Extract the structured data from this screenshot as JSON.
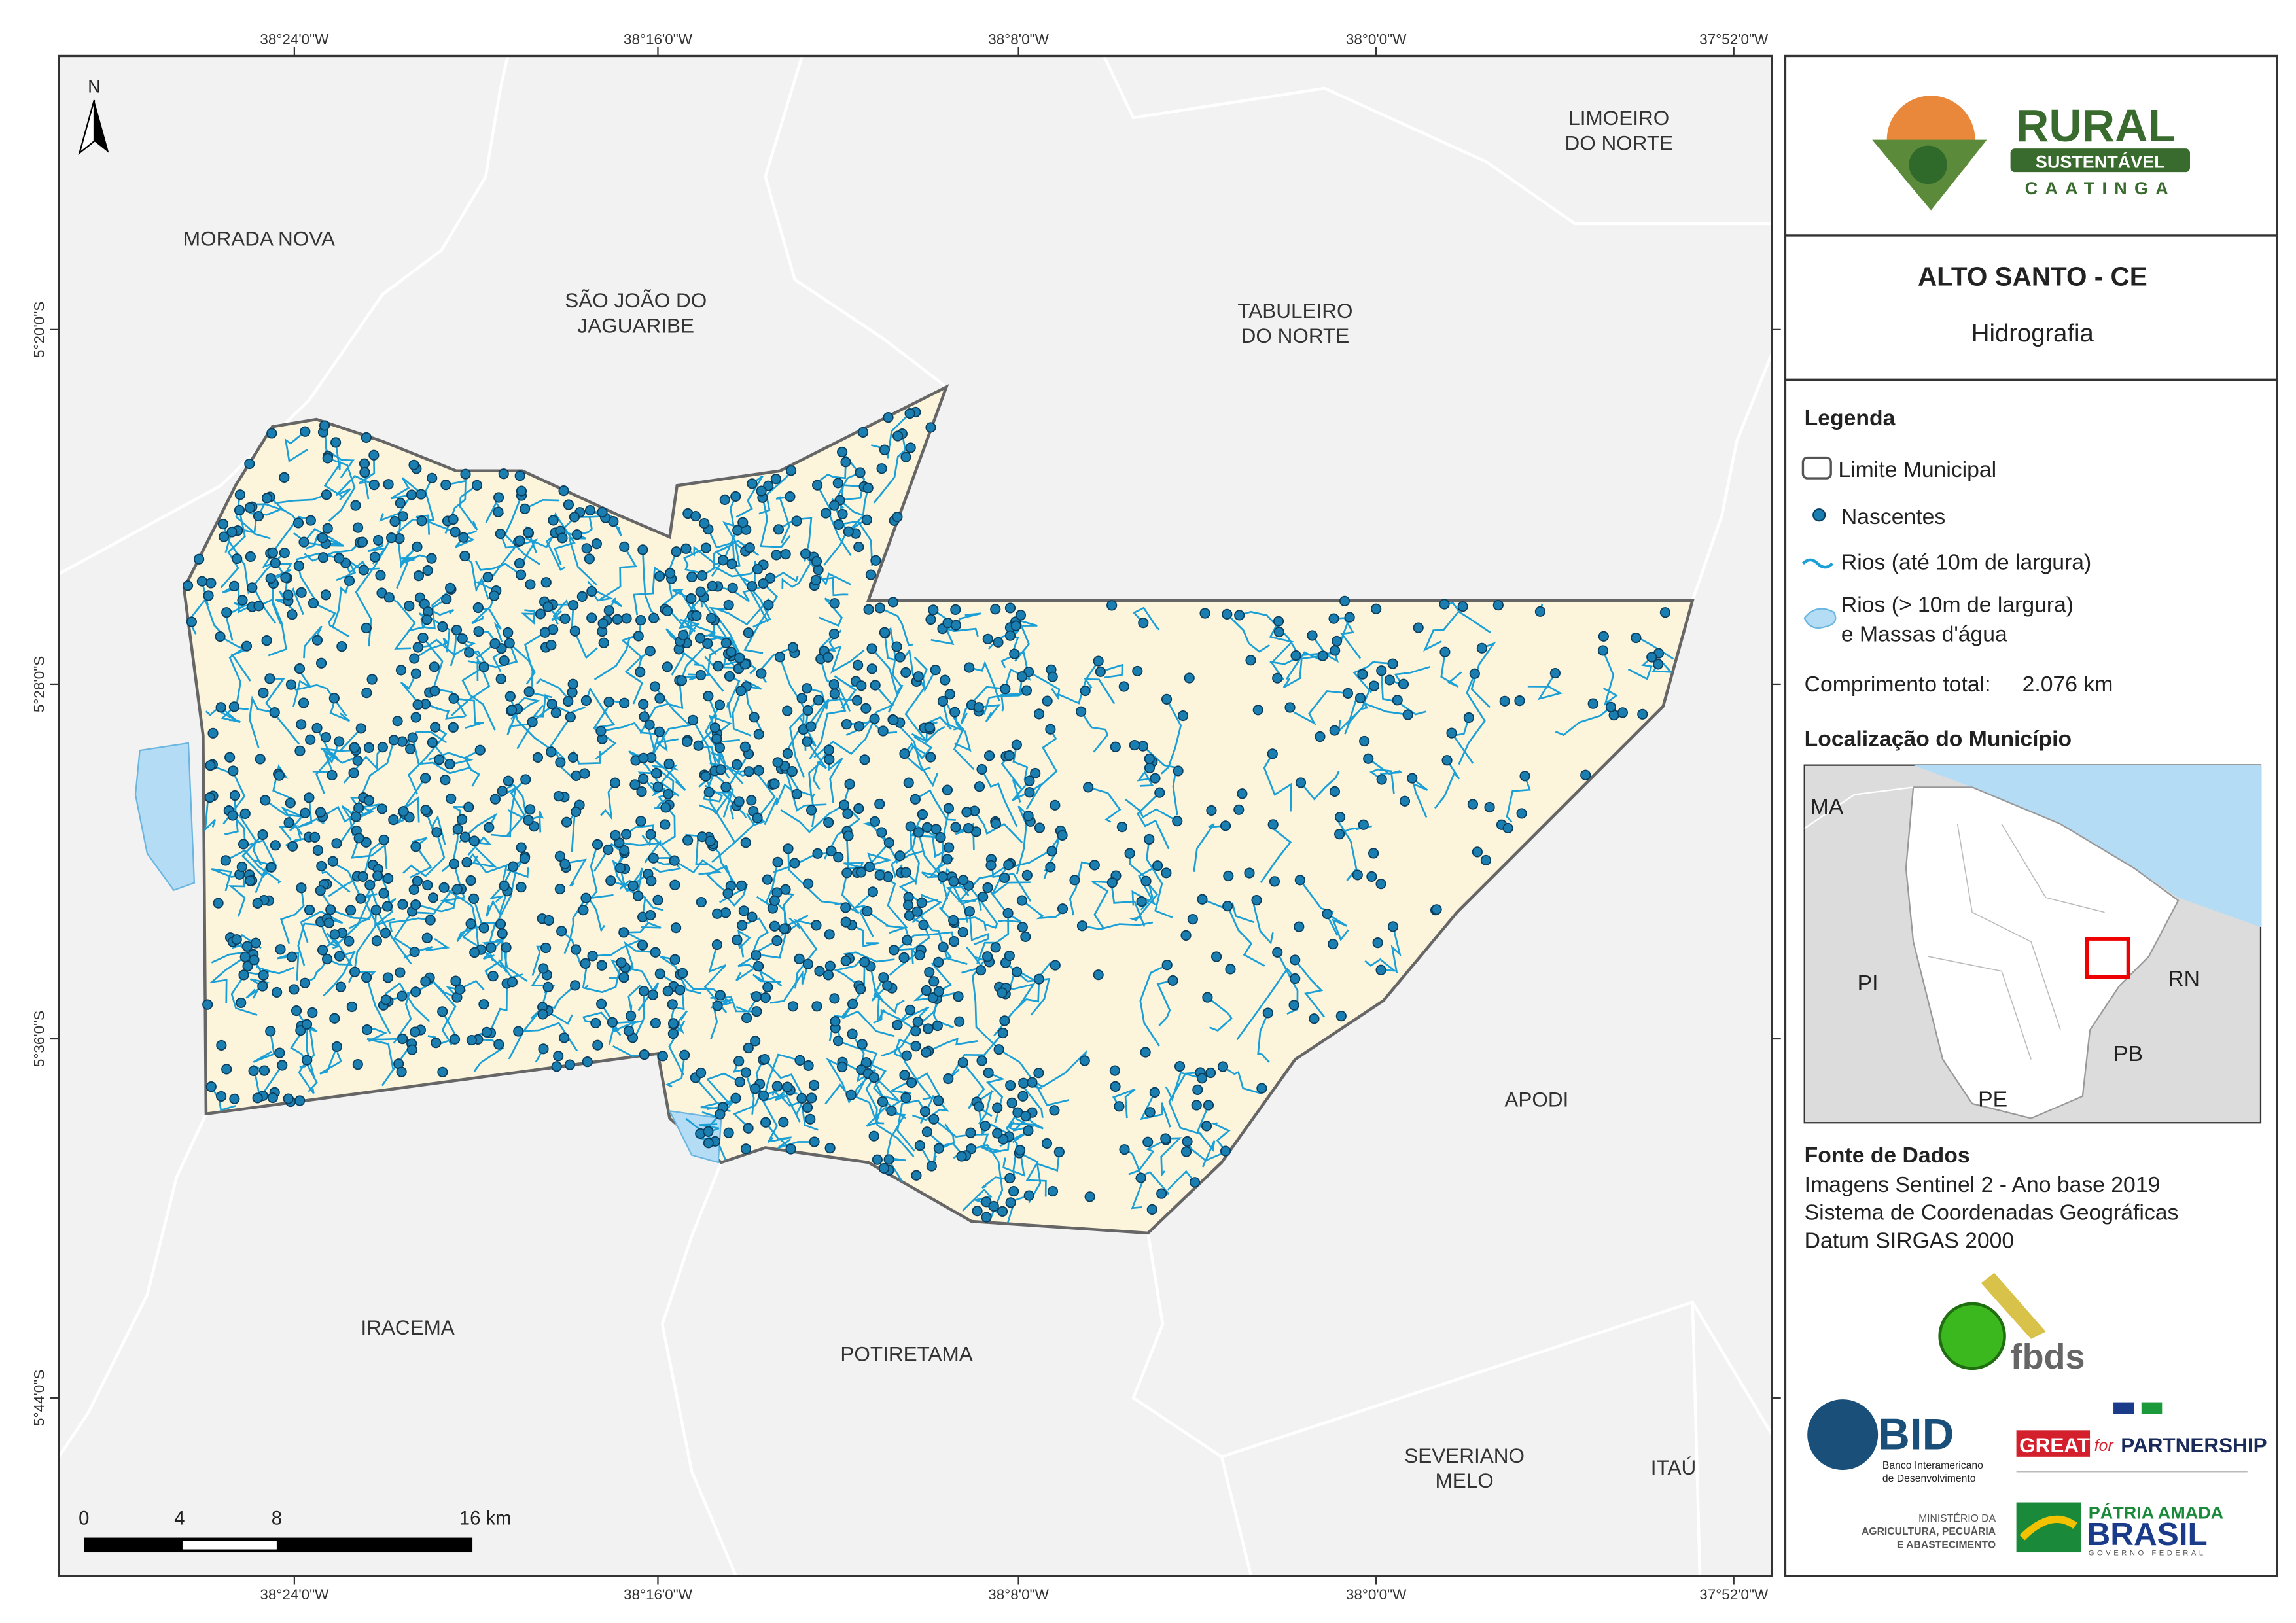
{
  "graticule": {
    "longitudes": [
      "38°24'0\"W",
      "38°16'0\"W",
      "38°8'0\"W",
      "38°0'0\"W",
      "37°52'0\"W"
    ],
    "latitudes": [
      "5°20'0\"S",
      "5°28'0\"S",
      "5°36'0\"S",
      "5°44'0\"S"
    ]
  },
  "map": {
    "north": "N",
    "neighbors": [
      [
        "MORADA NOVA"
      ],
      [
        "SÃO JOÃO DO",
        "JAGUARIBE"
      ],
      [
        "TABULEIRO",
        "DO NORTE"
      ],
      [
        "LIMOEIRO",
        "DO NORTE"
      ],
      [
        "APODI"
      ],
      [
        "IRACEMA"
      ],
      [
        "POTIRETAMA"
      ],
      [
        "SEVERIANO",
        "MELO"
      ],
      [
        "ITAÚ"
      ]
    ],
    "scale": [
      "0",
      "4",
      "8",
      "16 km"
    ]
  },
  "panel": {
    "logo": {
      "title": "RURAL",
      "subtitle": "SUSTENTÁVEL",
      "region": "CAATINGA"
    },
    "header": {
      "title": "ALTO SANTO - CE",
      "subtitle": "Hidrografia"
    },
    "legend": {
      "title": "Legenda",
      "items": [
        "Limite Municipal",
        "Nascentes",
        "Rios (até 10m de largura)",
        [
          "Rios (> 10m de largura)",
          "e Massas d'água"
        ]
      ],
      "total_label": "Comprimento total:",
      "total_value": "2.076 km"
    },
    "location": {
      "title": "Localização do Município",
      "labels": [
        "MA",
        "PI",
        "RN",
        "PB",
        "PE"
      ]
    },
    "sources": {
      "title": "Fonte de Dados",
      "lines": [
        "Imagens Sentinel 2 - Ano base 2019",
        "Sistema de Coordenadas Geográficas",
        "Datum SIRGAS 2000"
      ]
    },
    "partners": {
      "fbds": "fbds",
      "bid": "BID",
      "bid_name": [
        "Banco Interamericano",
        "de Desenvolvimento"
      ],
      "great": "GREAT",
      "for": "for",
      "partnership": "PARTNERSHIP",
      "ministry": [
        "MINISTÉRIO DA",
        "AGRICULTURA, PECUÁRIA",
        "E ABASTECIMENTO"
      ],
      "brasil_top": "PÁTRIA AMADA",
      "brasil": "BRASIL",
      "brasil_sub": "GOVERNO FEDERAL"
    }
  }
}
